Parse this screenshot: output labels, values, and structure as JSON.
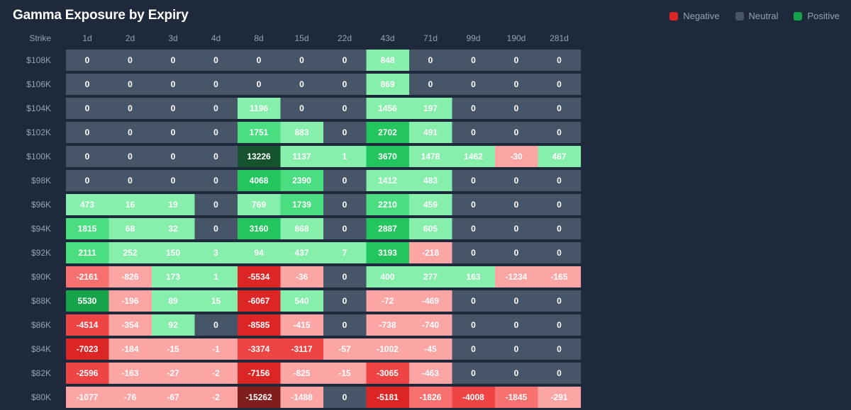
{
  "title": "Gamma Exposure by Expiry",
  "legend": [
    {
      "label": "Negative",
      "color": "#dc2626"
    },
    {
      "label": "Neutral",
      "color": "#475569"
    },
    {
      "label": "Positive",
      "color": "#16a34a"
    }
  ],
  "chart_data": {
    "type": "heatmap",
    "row_header": "Strike",
    "columns": [
      "1d",
      "2d",
      "3d",
      "4d",
      "8d",
      "15d",
      "22d",
      "43d",
      "71d",
      "99d",
      "190d",
      "281d"
    ],
    "rows": [
      "$108K",
      "$106K",
      "$104K",
      "$102K",
      "$100K",
      "$98K",
      "$96K",
      "$94K",
      "$92K",
      "$90K",
      "$88K",
      "$86K",
      "$84K",
      "$82K",
      "$80K"
    ],
    "values": [
      [
        0,
        0,
        0,
        0,
        0,
        0,
        0,
        848,
        0,
        0,
        0,
        0
      ],
      [
        0,
        0,
        0,
        0,
        0,
        0,
        0,
        869,
        0,
        0,
        0,
        0
      ],
      [
        0,
        0,
        0,
        0,
        1196,
        0,
        0,
        1456,
        197,
        0,
        0,
        0
      ],
      [
        0,
        0,
        0,
        0,
        1751,
        883,
        0,
        2702,
        491,
        0,
        0,
        0
      ],
      [
        0,
        0,
        0,
        0,
        13226,
        1137,
        1,
        3670,
        1478,
        1462,
        -30,
        467
      ],
      [
        0,
        0,
        0,
        0,
        4068,
        2390,
        0,
        1412,
        483,
        0,
        0,
        0
      ],
      [
        473,
        16,
        19,
        0,
        769,
        1739,
        0,
        2210,
        459,
        0,
        0,
        0
      ],
      [
        1815,
        68,
        32,
        0,
        3160,
        868,
        0,
        2887,
        605,
        0,
        0,
        0
      ],
      [
        2111,
        252,
        150,
        3,
        94,
        437,
        7,
        3193,
        -218,
        0,
        0,
        0
      ],
      [
        -2161,
        -826,
        173,
        1,
        -5534,
        -36,
        0,
        400,
        277,
        163,
        -1234,
        -165
      ],
      [
        5530,
        -196,
        89,
        15,
        -6067,
        540,
        0,
        -72,
        -469,
        0,
        0,
        0
      ],
      [
        -4514,
        -354,
        92,
        0,
        -8585,
        -415,
        0,
        -738,
        -740,
        0,
        0,
        0
      ],
      [
        -7023,
        -184,
        -15,
        -1,
        -3374,
        -3117,
        -57,
        -1002,
        -45,
        0,
        0,
        0
      ],
      [
        -2596,
        -163,
        -27,
        -2,
        -7156,
        -825,
        -15,
        -3065,
        -463,
        0,
        0,
        0
      ],
      [
        -1077,
        -76,
        -67,
        -2,
        -15262,
        -1488,
        0,
        -5181,
        -1826,
        -4008,
        -1845,
        -291
      ]
    ],
    "color_scale": {
      "neutral": "#475569",
      "positive_steps": [
        "#86efac",
        "#4ade80",
        "#22c55e",
        "#16a34a",
        "#14532d"
      ],
      "negative_steps": [
        "#fca5a5",
        "#f87171",
        "#ef4444",
        "#dc2626",
        "#7f1d1d"
      ],
      "thresholds": [
        0,
        1500,
        2500,
        5000,
        10000
      ]
    }
  }
}
